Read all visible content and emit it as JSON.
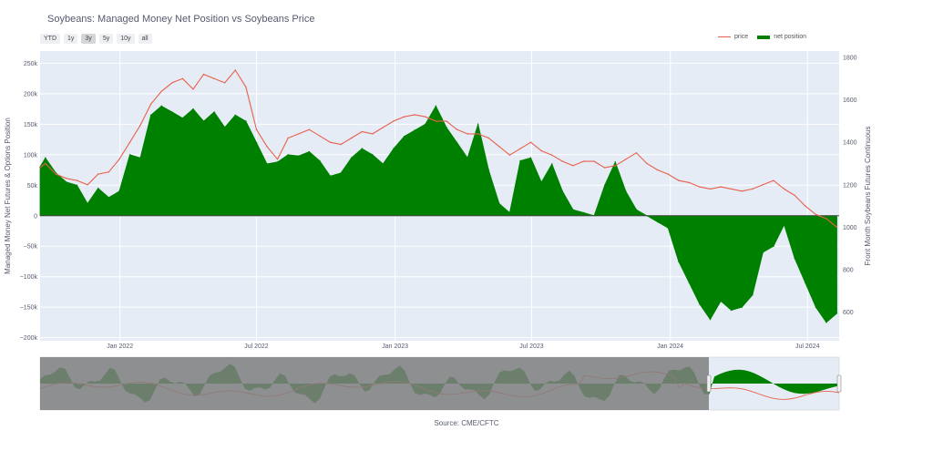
{
  "title": "Soybeans: Managed Money Net Position vs Soybeans Price",
  "range_buttons": [
    {
      "label": "YTD",
      "active": false
    },
    {
      "label": "1y",
      "active": false
    },
    {
      "label": "3y",
      "active": true
    },
    {
      "label": "5y",
      "active": false
    },
    {
      "label": "10y",
      "active": false
    },
    {
      "label": "all",
      "active": false
    }
  ],
  "legend": {
    "price": "price",
    "net_position": "net position"
  },
  "source": "Source: CME/CFTC",
  "colors": {
    "price": "#e8604c",
    "net_position": "#008000",
    "plot_bg": "#e5ecf6",
    "range_mask": "#7f7f7f"
  },
  "chart_data": {
    "type": "area",
    "ylabel": "Managed Money Net Futures & Options Position",
    "y2label": "Front Month Soybeans Futures Continuous",
    "xlim": [
      "2021-09-17",
      "2024-08-12"
    ],
    "ylim": [
      -205000,
      270000
    ],
    "y2lim": [
      465,
      1830
    ],
    "x_ticks": [
      {
        "date": "2022-01-01",
        "label": "Jan 2022"
      },
      {
        "date": "2022-07-01",
        "label": "Jul 2022"
      },
      {
        "date": "2023-01-01",
        "label": "Jan 2023"
      },
      {
        "date": "2023-07-01",
        "label": "Jul 2023"
      },
      {
        "date": "2024-01-01",
        "label": "Jan 2024"
      },
      {
        "date": "2024-07-01",
        "label": "Jul 2024"
      }
    ],
    "y_ticks": [
      {
        "value": 250000,
        "label": "250k"
      },
      {
        "value": 200000,
        "label": "200k"
      },
      {
        "value": 150000,
        "label": "150k"
      },
      {
        "value": 100000,
        "label": "100k"
      },
      {
        "value": 50000,
        "label": "50k"
      },
      {
        "value": 0,
        "label": "0"
      },
      {
        "value": -50000,
        "label": "−50k"
      },
      {
        "value": -100000,
        "label": "−100k"
      },
      {
        "value": -150000,
        "label": "−150k"
      },
      {
        "value": -200000,
        "label": "−200k"
      }
    ],
    "y2_ticks": [
      {
        "value": 1800,
        "label": "1800"
      },
      {
        "value": 1600,
        "label": "1600"
      },
      {
        "value": 1400,
        "label": "1400"
      },
      {
        "value": 1200,
        "label": "1200"
      },
      {
        "value": 1000,
        "label": "1000"
      },
      {
        "value": 800,
        "label": "800"
      },
      {
        "value": 600,
        "label": "600"
      }
    ],
    "grid": true,
    "series": [
      {
        "name": "net position",
        "axis": "left",
        "x": [
          "2021-09-17",
          "2021-09-24",
          "2021-10-08",
          "2021-10-22",
          "2021-11-05",
          "2021-11-19",
          "2021-12-03",
          "2021-12-17",
          "2021-12-31",
          "2022-01-14",
          "2022-01-28",
          "2022-02-11",
          "2022-02-25",
          "2022-03-11",
          "2022-03-25",
          "2022-04-08",
          "2022-04-22",
          "2022-05-06",
          "2022-05-20",
          "2022-06-03",
          "2022-06-17",
          "2022-07-01",
          "2022-07-15",
          "2022-07-29",
          "2022-08-12",
          "2022-08-26",
          "2022-09-09",
          "2022-09-23",
          "2022-10-07",
          "2022-10-21",
          "2022-11-04",
          "2022-11-18",
          "2022-12-02",
          "2022-12-16",
          "2022-12-30",
          "2023-01-13",
          "2023-01-27",
          "2023-02-10",
          "2023-02-24",
          "2023-03-10",
          "2023-03-24",
          "2023-04-07",
          "2023-04-21",
          "2023-05-05",
          "2023-05-19",
          "2023-06-02",
          "2023-06-16",
          "2023-06-30",
          "2023-07-14",
          "2023-07-28",
          "2023-08-11",
          "2023-08-25",
          "2023-09-08",
          "2023-09-22",
          "2023-10-06",
          "2023-10-20",
          "2023-11-03",
          "2023-11-17",
          "2023-12-01",
          "2023-12-15",
          "2023-12-29",
          "2024-01-12",
          "2024-01-26",
          "2024-02-09",
          "2024-02-23",
          "2024-03-08",
          "2024-03-22",
          "2024-04-05",
          "2024-04-19",
          "2024-05-03",
          "2024-05-17",
          "2024-05-31",
          "2024-06-14",
          "2024-06-28",
          "2024-07-12",
          "2024-07-26",
          "2024-08-09"
        ],
        "values": [
          80000,
          95000,
          70000,
          55000,
          50000,
          20000,
          45000,
          30000,
          40000,
          100000,
          95000,
          165000,
          180000,
          170000,
          160000,
          175000,
          155000,
          170000,
          145000,
          165000,
          155000,
          120000,
          85000,
          88000,
          100000,
          98000,
          105000,
          90000,
          65000,
          70000,
          95000,
          110000,
          100000,
          85000,
          110000,
          130000,
          140000,
          150000,
          180000,
          145000,
          120000,
          95000,
          150000,
          75000,
          20000,
          5000,
          90000,
          95000,
          55000,
          85000,
          40000,
          10000,
          5000,
          0,
          50000,
          88000,
          40000,
          10000,
          0,
          -10000,
          -20000,
          -75000,
          -110000,
          -145000,
          -170000,
          -140000,
          -155000,
          -150000,
          -130000,
          -60000,
          -50000,
          -15000,
          -70000,
          -110000,
          -150000,
          -175000,
          -160000
        ]
      },
      {
        "name": "price",
        "axis": "right",
        "x": [
          "2021-09-17",
          "2021-09-24",
          "2021-10-08",
          "2021-10-22",
          "2021-11-05",
          "2021-11-19",
          "2021-12-03",
          "2021-12-17",
          "2021-12-31",
          "2022-01-14",
          "2022-01-28",
          "2022-02-11",
          "2022-02-25",
          "2022-03-11",
          "2022-03-25",
          "2022-04-08",
          "2022-04-22",
          "2022-05-06",
          "2022-05-20",
          "2022-06-03",
          "2022-06-17",
          "2022-07-01",
          "2022-07-15",
          "2022-07-29",
          "2022-08-12",
          "2022-08-26",
          "2022-09-09",
          "2022-09-23",
          "2022-10-07",
          "2022-10-21",
          "2022-11-04",
          "2022-11-18",
          "2022-12-02",
          "2022-12-16",
          "2022-12-30",
          "2023-01-13",
          "2023-01-27",
          "2023-02-10",
          "2023-02-24",
          "2023-03-10",
          "2023-03-24",
          "2023-04-07",
          "2023-04-21",
          "2023-05-05",
          "2023-05-19",
          "2023-06-02",
          "2023-06-16",
          "2023-06-30",
          "2023-07-14",
          "2023-07-28",
          "2023-08-11",
          "2023-08-25",
          "2023-09-08",
          "2023-09-22",
          "2023-10-06",
          "2023-10-20",
          "2023-11-03",
          "2023-11-17",
          "2023-12-01",
          "2023-12-15",
          "2023-12-29",
          "2024-01-12",
          "2024-01-26",
          "2024-02-09",
          "2024-02-23",
          "2024-03-08",
          "2024-03-22",
          "2024-04-05",
          "2024-04-19",
          "2024-05-03",
          "2024-05-17",
          "2024-05-31",
          "2024-06-14",
          "2024-06-28",
          "2024-07-12",
          "2024-07-26",
          "2024-08-09"
        ],
        "values": [
          1280,
          1300,
          1250,
          1230,
          1220,
          1200,
          1250,
          1260,
          1320,
          1400,
          1480,
          1580,
          1640,
          1680,
          1700,
          1650,
          1720,
          1700,
          1680,
          1740,
          1660,
          1460,
          1380,
          1320,
          1420,
          1440,
          1460,
          1430,
          1400,
          1390,
          1420,
          1450,
          1440,
          1470,
          1500,
          1520,
          1530,
          1520,
          1500,
          1500,
          1460,
          1440,
          1440,
          1420,
          1380,
          1340,
          1370,
          1400,
          1360,
          1340,
          1310,
          1290,
          1310,
          1310,
          1280,
          1290,
          1320,
          1350,
          1300,
          1270,
          1250,
          1220,
          1210,
          1190,
          1180,
          1190,
          1180,
          1170,
          1180,
          1200,
          1220,
          1180,
          1150,
          1100,
          1060,
          1040,
          1000
        ]
      }
    ]
  }
}
